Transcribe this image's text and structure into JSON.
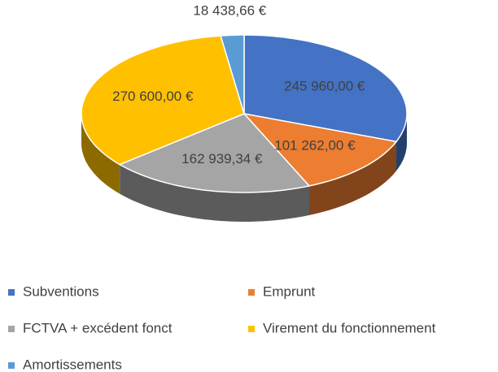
{
  "chart_data": {
    "type": "pie3d",
    "categories": [
      "Subventions",
      "Emprunt",
      "FCTVA + excédent fonct",
      "Virement du fonctionnement",
      "Amortissements"
    ],
    "values": [
      245960,
      101262,
      162939.34,
      270600,
      18438.66
    ],
    "value_labels": [
      "245 960,00 €",
      "101 262,00 €",
      "162 939,34 €",
      "270 600,00 €",
      "18 438,66 €"
    ],
    "colors": [
      "#4472c4",
      "#ed7d31",
      "#a5a5a5",
      "#ffc000",
      "#5b9bd5"
    ],
    "legend": "bottom"
  }
}
